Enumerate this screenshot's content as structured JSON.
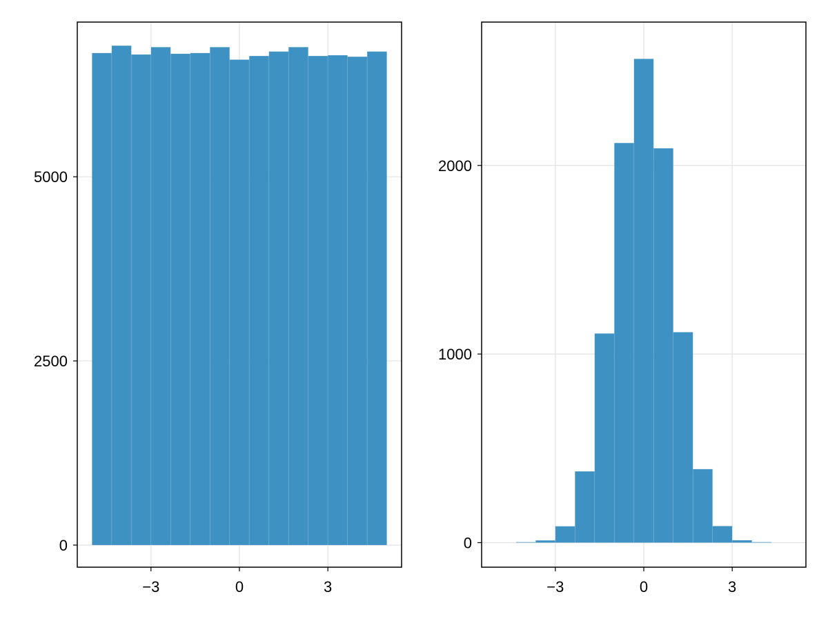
{
  "colors": {
    "bar": "#3a8fc2",
    "axis": "#000000",
    "grid": "#e2e2e2",
    "background": "#ffffff"
  },
  "chart_data": [
    {
      "type": "bar",
      "title": "",
      "xlabel": "",
      "ylabel": "",
      "grid": true,
      "xlim": [
        -5.5,
        5.5
      ],
      "ylim": [
        -300,
        7100
      ],
      "xticks": [
        -3,
        0,
        3
      ],
      "xtick_labels": [
        "−3",
        "0",
        "3"
      ],
      "yticks": [
        0,
        2500,
        5000
      ],
      "ytick_labels": [
        "0",
        "2500",
        "5000"
      ],
      "bin_edges": [
        -5.0,
        -4.333,
        -3.667,
        -3.0,
        -2.333,
        -1.667,
        -1.0,
        -0.333,
        0.333,
        1.0,
        1.667,
        2.333,
        3.0,
        3.667,
        4.333,
        5.0
      ],
      "values": [
        6680,
        6780,
        6660,
        6760,
        6670,
        6680,
        6760,
        6590,
        6640,
        6700,
        6760,
        6640,
        6650,
        6630,
        6700
      ]
    },
    {
      "type": "bar",
      "title": "",
      "xlabel": "",
      "ylabel": "",
      "grid": true,
      "xlim": [
        -5.5,
        5.5
      ],
      "ylim": [
        -130,
        2760
      ],
      "xticks": [
        -3,
        0,
        3
      ],
      "xtick_labels": [
        "−3",
        "0",
        "3"
      ],
      "yticks": [
        0,
        1000,
        2000
      ],
      "ytick_labels": [
        "0",
        "1000",
        "2000"
      ],
      "bin_edges": [
        -4.333,
        -3.667,
        -3.0,
        -2.333,
        -1.667,
        -1.0,
        -0.333,
        0.333,
        1.0,
        1.667,
        2.333,
        3.0,
        3.667,
        4.333
      ],
      "values": [
        3,
        12,
        87,
        378,
        1109,
        2119,
        2565,
        2091,
        1116,
        390,
        88,
        13,
        3
      ]
    }
  ]
}
